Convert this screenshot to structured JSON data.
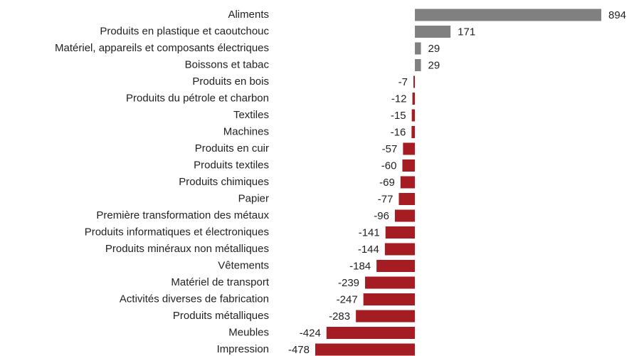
{
  "chart_data": {
    "type": "bar",
    "orientation": "horizontal",
    "categories": [
      "Aliments",
      "Produits en plastique et caoutchouc",
      "Matériel, appareils et composants électriques",
      "Boissons et tabac",
      "Produits en bois",
      "Produits du pétrole et charbon",
      "Textiles",
      "Machines",
      "Produits en cuir",
      "Produits textiles",
      "Produits chimiques",
      "Papier",
      "Première transformation des métaux",
      "Produits informatiques et électroniques",
      "Produits minéraux non métalliques",
      "Vêtements",
      "Matériel de transport",
      "Activités diverses de fabrication",
      "Produits métalliques",
      "Meubles",
      "Impression"
    ],
    "values": [
      894,
      171,
      29,
      29,
      -7,
      -12,
      -15,
      -16,
      -57,
      -60,
      -69,
      -77,
      -96,
      -141,
      -144,
      -184,
      -239,
      -247,
      -283,
      -424,
      -478
    ],
    "color": "#808080",
    "negative_color": "#a51c22",
    "xlim": [
      -478,
      894
    ]
  }
}
